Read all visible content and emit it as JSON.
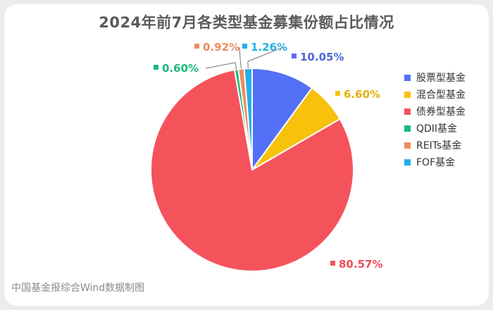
{
  "chart_data": {
    "type": "pie",
    "title": "2024年前7月各类型基金募集份额占比情况",
    "start_angle_deg": 0,
    "direction": "clockwise",
    "legend_position": "right",
    "value_unit": "%",
    "slices": [
      {
        "name": "股票型基金",
        "value": 10.05,
        "color": "#5470f6",
        "label": "10.05%",
        "label_color": "#4e66d8"
      },
      {
        "name": "混合型基金",
        "value": 6.6,
        "color": "#f7c10c",
        "label": "6.60%",
        "label_color": "#e2b106"
      },
      {
        "name": "债券型基金",
        "value": 80.57,
        "color": "#f5535c",
        "label": "80.57%",
        "label_color": "#ef4c57"
      },
      {
        "name": "QDII基金",
        "value": 0.6,
        "color": "#19b87d",
        "label": "0.60%",
        "label_color": "#19b87d"
      },
      {
        "name": "REITs基金",
        "value": 0.92,
        "color": "#f08a5f",
        "label": "0.92%",
        "label_color": "#f08a5f"
      },
      {
        "name": "FOF基金",
        "value": 1.26,
        "color": "#27aee8",
        "label": "1.26%",
        "label_color": "#27aee8"
      }
    ]
  },
  "source_note": "中国基金报综合Wind数据制图"
}
